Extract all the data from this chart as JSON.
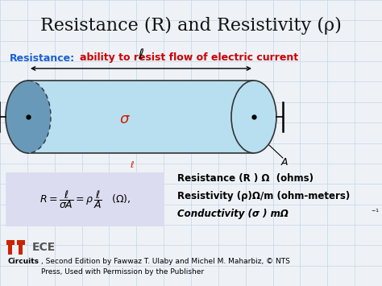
{
  "title": "Resistance (R) and Resistivity (ρ)",
  "resistance_label": "Resistance:",
  "resistance_desc": "ability to resist flow of electric current",
  "cylinder_color": "#b8dff0",
  "cylinder_left_color": "#6899b8",
  "cylinder_edge_color": "#333333",
  "sigma_color": "#cc2200",
  "formula_box_color": "#dcdcf0",
  "right_text_line1": "Resistance (R ) Ω  (ohms)",
  "right_text_line2": "Resistivity (ρ)Ω/m (ohm-meters)",
  "right_text_line3": "Conductivity (σ ) mΩ",
  "bg_color": "#eef2f7",
  "title_color": "#111111",
  "resistance_label_color": "#1a5fd4",
  "resistance_desc_color": "#cc0000",
  "grid_color": "#c5d5e5",
  "footer_bold": "Circuits",
  "footer_rest": ", Second Edition by Fawwaz T. Ulaby and Michel M. Maharbiz, © NTS\nPress, Used with Permission by the Publisher",
  "logo_color": "#cc2200",
  "logo_text_color": "#555555"
}
